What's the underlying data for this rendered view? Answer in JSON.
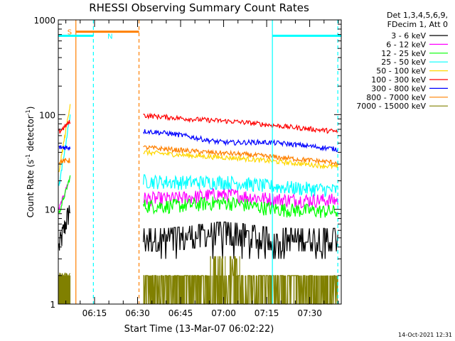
{
  "chart_data": {
    "type": "line",
    "title": "RHESSI Observing Summary Count Rates",
    "xlabel": "Start Time (13-Mar-07 06:02:22)",
    "ylabel": "Count Rate (s⁻¹ detector⁻¹)",
    "ylabel_parts": {
      "pre": "Count Rate (s",
      "sup1": "-1",
      "mid": " detector",
      "sup2": "-1",
      "post": ")"
    },
    "y_scale": "log",
    "ylim": [
      1,
      1000
    ],
    "x_range": [
      "06:02",
      "07:41"
    ],
    "x_ticks": [
      {
        "label": "06:15",
        "t": 375
      },
      {
        "label": "06:30",
        "t": 390
      },
      {
        "label": "06:45",
        "t": 405
      },
      {
        "label": "07:00",
        "t": 420
      },
      {
        "label": "07:15",
        "t": 435
      },
      {
        "label": "07:30",
        "t": 450
      }
    ],
    "x_min": 362.37,
    "x_max": 461,
    "y_ticks": [
      {
        "label": "1",
        "v": 1
      },
      {
        "label": "10",
        "v": 10
      },
      {
        "label": "100",
        "v": 100
      },
      {
        "label": "1000",
        "v": 1000
      }
    ],
    "legend_header": [
      "Det 1,3,4,5,6,9,",
      "FDecim 1, Att 0"
    ],
    "legend_position": "right",
    "grid": false,
    "timestamp": "14-Oct-2021 12:31",
    "markers": [
      {
        "label": "S",
        "color": "#ff8000",
        "t_start": 368.5,
        "t_end": 390.5,
        "value": 750
      },
      {
        "label": "N",
        "color": "#00ffff",
        "t_start": 362.4,
        "t_end": 374.6,
        "value": 680
      },
      {
        "label": "",
        "color": "#00ffff",
        "t_start": 437.0,
        "t_end": 461.0,
        "value": 680
      }
    ],
    "vertical_lines": [
      {
        "t": 368.5,
        "color": "#ff8000",
        "style": "solid"
      },
      {
        "t": 374.6,
        "color": "#00ffff",
        "style": "dashed"
      },
      {
        "t": 390.5,
        "color": "#ff8000",
        "style": "dashed"
      },
      {
        "t": 437.0,
        "color": "#00ffff",
        "style": "solid"
      },
      {
        "t": 459.8,
        "color": "#00ffff",
        "style": "dashed"
      }
    ],
    "series": [
      {
        "name": "3 - 6 keV",
        "color": "#000000",
        "pre": [
          4.0,
          10.5
        ],
        "post_start": 6.0,
        "post_peak": 6.8,
        "post_end": 4.0
      },
      {
        "name": "6 - 12 keV",
        "color": "#ff00ff",
        "pre": [
          10.0,
          22.0
        ],
        "post_start": 13.0,
        "post_peak": 15.5,
        "post_end": 12.5
      },
      {
        "name": "12 - 25 keV",
        "color": "#00ff00",
        "pre": [
          9.0,
          22.0
        ],
        "post_start": 11.0,
        "post_peak": 13.0,
        "post_end": 9.5
      },
      {
        "name": "25 - 50 keV",
        "color": "#00ffff",
        "pre": [
          17.0,
          100.0
        ],
        "post_start": 20.0,
        "post_peak": 21.0,
        "post_end": 16.0
      },
      {
        "name": "50 - 100 keV",
        "color": "#ffd700",
        "pre": [
          25.0,
          130.0
        ],
        "post_start": 40.0,
        "post_peak": 38.0,
        "post_end": 28.0
      },
      {
        "name": "100 - 300 keV",
        "color": "#ff0000",
        "pre": [
          65.0,
          85.0
        ],
        "post_start": 98.0,
        "post_peak": 93.0,
        "post_end": 66.0
      },
      {
        "name": "300 - 800 keV",
        "color": "#0000ff",
        "pre": [
          45.0,
          45.0
        ],
        "post_start": 67.0,
        "post_peak": 52.0,
        "post_end": 43.0
      },
      {
        "name": "800 - 7000 keV",
        "color": "#ff8000",
        "pre": [
          32.0,
          33.0
        ],
        "post_start": 45.0,
        "post_peak": 42.0,
        "post_end": 31.0
      },
      {
        "name": "7000 - 15000 keV",
        "color": "#808000",
        "pre": [
          2.0,
          2.0
        ],
        "post_start": 2.0,
        "post_peak": 3.5,
        "post_end": 2.0
      }
    ]
  }
}
